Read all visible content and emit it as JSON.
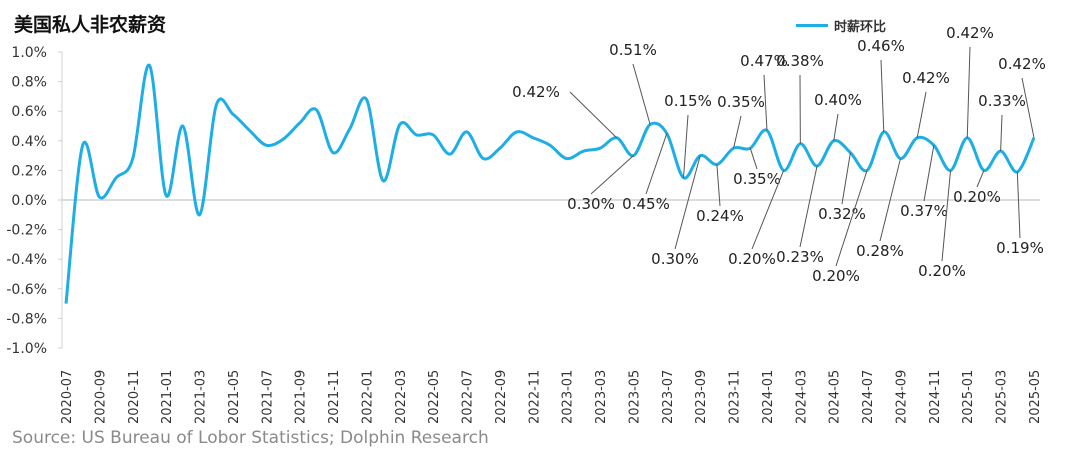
{
  "title": "美国私人非农薪资",
  "source": "Source: US Bureau of Lobor Statistics; Dolphin Research",
  "colors": {
    "line": "#1eaee6",
    "zero_line": "#c8c8c8",
    "text": "#222222"
  },
  "chart_data": {
    "type": "line",
    "title": "美国私人非农薪资",
    "xlabel": "",
    "ylabel": "",
    "ylim": [
      -1.0,
      1.0
    ],
    "yticks": [
      "1.0%",
      "0.8%",
      "0.6%",
      "0.4%",
      "0.2%",
      "0.0%",
      "-0.2%",
      "-0.4%",
      "-0.6%",
      "-0.8%",
      "-1.0%"
    ],
    "grid": false,
    "legend_position": "top-right",
    "x": [
      "2020-07",
      "2020-08",
      "2020-09",
      "2020-10",
      "2020-11",
      "2020-12",
      "2021-01",
      "2021-02",
      "2021-03",
      "2021-04",
      "2021-05",
      "2021-06",
      "2021-07",
      "2021-08",
      "2021-09",
      "2021-10",
      "2021-11",
      "2021-12",
      "2022-01",
      "2022-02",
      "2022-03",
      "2022-04",
      "2022-05",
      "2022-06",
      "2022-07",
      "2022-08",
      "2022-09",
      "2022-10",
      "2022-11",
      "2022-12",
      "2023-01",
      "2023-02",
      "2023-03",
      "2023-04",
      "2023-05",
      "2023-06",
      "2023-07",
      "2023-08",
      "2023-09",
      "2023-10",
      "2023-11",
      "2023-12",
      "2024-01",
      "2024-02",
      "2024-03",
      "2024-04",
      "2024-05",
      "2024-06",
      "2024-07",
      "2024-08",
      "2024-09",
      "2024-10",
      "2024-11",
      "2024-12",
      "2025-01",
      "2025-02",
      "2025-03",
      "2025-04",
      "2025-05"
    ],
    "xtick_labels": [
      "2020-07",
      "2020-09",
      "2020-11",
      "2021-01",
      "2021-03",
      "2021-05",
      "2021-07",
      "2021-09",
      "2021-11",
      "2022-01",
      "2022-03",
      "2022-05",
      "2022-07",
      "2022-09",
      "2022-11",
      "2023-01",
      "2023-03",
      "2023-05",
      "2023-07",
      "2023-09",
      "2023-11",
      "2024-01",
      "2024-03",
      "2024-05",
      "2024-07",
      "2024-09",
      "2024-11",
      "2025-01",
      "2025-03",
      "2025-05"
    ],
    "series": [
      {
        "name": "时薪环比",
        "unit": "%",
        "values": [
          -0.7,
          0.37,
          0.02,
          0.15,
          0.28,
          0.91,
          0.03,
          0.5,
          -0.1,
          0.64,
          0.58,
          0.47,
          0.37,
          0.41,
          0.52,
          0.61,
          0.32,
          0.48,
          0.68,
          0.13,
          0.51,
          0.44,
          0.44,
          0.31,
          0.46,
          0.28,
          0.35,
          0.46,
          0.42,
          0.37,
          0.28,
          0.33,
          0.35,
          0.42,
          0.3,
          0.51,
          0.45,
          0.15,
          0.3,
          0.24,
          0.35,
          0.35,
          0.47,
          0.2,
          0.38,
          0.23,
          0.4,
          0.32,
          0.2,
          0.46,
          0.28,
          0.42,
          0.37,
          0.2,
          0.42,
          0.2,
          0.33,
          0.19,
          0.42
        ]
      }
    ],
    "data_labels": [
      "0.42%",
      "0.30%",
      "0.51%",
      "0.45%",
      "0.15%",
      "0.30%",
      "0.24%",
      "0.35%",
      "0.35%",
      "0.47%",
      "0.20%",
      "0.38%",
      "0.23%",
      "0.40%",
      "0.32%",
      "0.20%",
      "0.46%",
      "0.28%",
      "0.42%",
      "0.37%",
      "0.20%",
      "0.42%",
      "0.20%",
      "0.33%",
      "0.19%",
      "0.42%"
    ]
  }
}
